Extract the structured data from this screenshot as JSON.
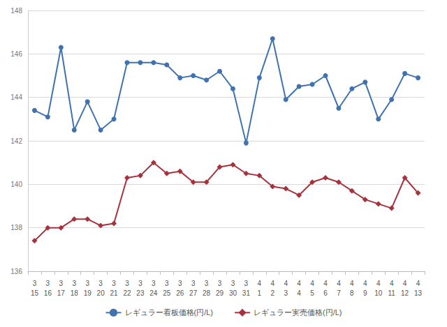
{
  "chart_data": {
    "type": "line",
    "categories": [
      "3\n15",
      "3\n16",
      "3\n17",
      "3\n18",
      "3\n19",
      "3\n20",
      "3\n21",
      "3\n22",
      "3\n23",
      "3\n24",
      "3\n25",
      "3\n26",
      "3\n27",
      "3\n28",
      "3\n29",
      "3\n30",
      "3\n31",
      "4\n1",
      "4\n2",
      "4\n3",
      "4\n4",
      "4\n5",
      "4\n6",
      "4\n7",
      "4\n8",
      "4\n9",
      "4\n10",
      "4\n11",
      "4\n12",
      "4\n13"
    ],
    "series": [
      {
        "name": "レギュラー看板価格(円/L)",
        "color": "#3f72ae",
        "marker": "circle",
        "values": [
          143.4,
          143.1,
          146.3,
          142.5,
          143.8,
          142.5,
          143.0,
          145.6,
          145.6,
          145.6,
          145.5,
          144.9,
          145.0,
          144.8,
          145.2,
          144.4,
          141.9,
          144.9,
          146.7,
          143.9,
          144.5,
          144.6,
          145.0,
          143.5,
          144.4,
          144.7,
          143.0,
          143.9,
          145.1,
          144.9
        ]
      },
      {
        "name": "レギュラー実売価格(円/L)",
        "color": "#a6323c",
        "marker": "diamond",
        "values": [
          137.4,
          138.0,
          138.0,
          138.4,
          138.4,
          138.1,
          138.2,
          140.3,
          140.4,
          141.0,
          140.5,
          140.6,
          140.1,
          140.1,
          140.8,
          140.9,
          140.5,
          140.4,
          139.9,
          139.8,
          139.5,
          140.1,
          140.3,
          140.1,
          139.7,
          139.3,
          139.1,
          138.9,
          140.3,
          139.6
        ]
      }
    ],
    "ylim": [
      136,
      148
    ],
    "yticks": [
      136,
      138,
      140,
      142,
      144,
      146,
      148
    ],
    "grid": true,
    "legend": "bottom"
  }
}
